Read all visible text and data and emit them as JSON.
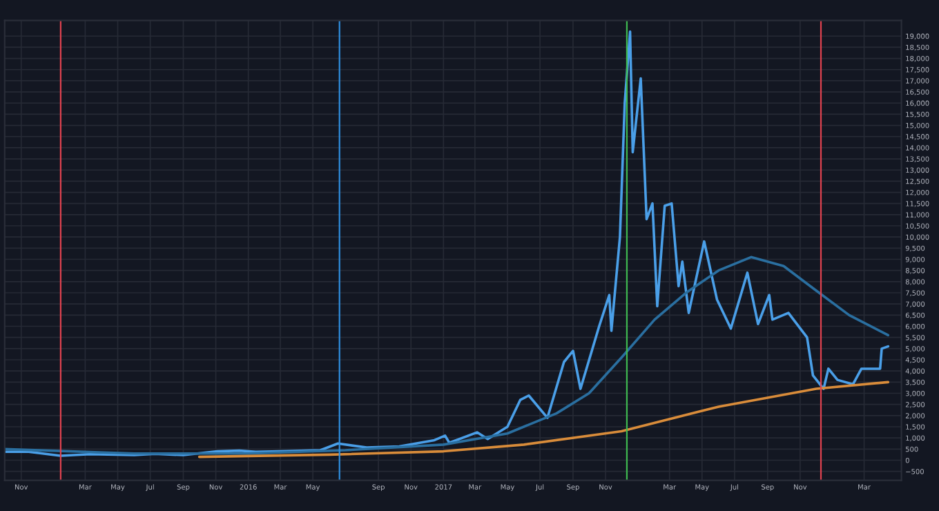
{
  "chart_data": {
    "type": "line",
    "series": [
      {
        "color": "#4a9fe8",
        "x": [
          "2014-10-01",
          "2014-11-15",
          "2015-01-14",
          "2015-03-10",
          "2015-06-01",
          "2015-07-10",
          "2015-09-01",
          "2015-11-04",
          "2015-12-15",
          "2016-01-15",
          "2016-03-15",
          "2016-05-15",
          "2016-06-17",
          "2016-08-10",
          "2016-10-10",
          "2016-12-15",
          "2017-01-04",
          "2017-01-12",
          "2017-03-05",
          "2017-03-25",
          "2017-05-01",
          "2017-05-25",
          "2017-06-10",
          "2017-07-15",
          "2017-08-15",
          "2017-09-01",
          "2017-09-15",
          "2017-10-20",
          "2017-11-08",
          "2017-11-12",
          "2017-11-28",
          "2017-12-07",
          "2017-12-17",
          "2017-12-22",
          "2018-01-06",
          "2018-01-17",
          "2018-01-28",
          "2018-02-06",
          "2018-02-20",
          "2018-03-05",
          "2018-03-18",
          "2018-03-25",
          "2018-04-06",
          "2018-05-05",
          "2018-05-29",
          "2018-06-24",
          "2018-07-25",
          "2018-08-14",
          "2018-09-04",
          "2018-09-10",
          "2018-10-10",
          "2018-11-14",
          "2018-11-25",
          "2018-12-15",
          "2018-12-24",
          "2019-01-10",
          "2019-02-08",
          "2019-02-24",
          "2019-03-31",
          "2019-04-03",
          "2019-04-15"
        ],
        "values": [
          380,
          380,
          200,
          270,
          230,
          290,
          230,
          400,
          430,
          380,
          410,
          450,
          750,
          570,
          620,
          900,
          1100,
          780,
          1250,
          950,
          1500,
          2700,
          2900,
          1900,
          4400,
          4900,
          3200,
          6000,
          7400,
          5800,
          10000,
          16000,
          19200,
          13800,
          17100,
          10800,
          11500,
          6900,
          11400,
          11500,
          7800,
          8900,
          6600,
          9800,
          7200,
          5900,
          8400,
          6100,
          7400,
          6300,
          6600,
          5500,
          3800,
          3200,
          4100,
          3600,
          3400,
          4100,
          4100,
          5000,
          5100
        ]
      },
      {
        "color": "#2a6fa0",
        "x": [
          "2014-10-01",
          "2015-06-01",
          "2016-01-01",
          "2016-07-01",
          "2017-01-01",
          "2017-05-01",
          "2017-08-01",
          "2017-10-01",
          "2017-12-01",
          "2018-02-01",
          "2018-04-01",
          "2018-06-01",
          "2018-08-01",
          "2018-10-01",
          "2018-12-01",
          "2019-02-01",
          "2019-04-15"
        ],
        "values": [
          500,
          300,
          300,
          450,
          700,
          1200,
          2100,
          3000,
          4600,
          6300,
          7500,
          8500,
          9100,
          8700,
          7600,
          6500,
          5600
        ]
      },
      {
        "color": "#d98c3a",
        "x": [
          "2015-10-01",
          "2016-06-01",
          "2017-01-01",
          "2017-06-01",
          "2017-12-01",
          "2018-06-01",
          "2018-12-01",
          "2019-04-15"
        ],
        "values": [
          150,
          250,
          400,
          700,
          1300,
          2400,
          3200,
          3500
        ]
      }
    ],
    "xlim": [
      "2014-10-01",
      "2019-05-10"
    ],
    "xticks": [
      {
        "value": "2014-11-01",
        "label": "Nov"
      },
      {
        "value": "2015-03-01",
        "label": "Mar"
      },
      {
        "value": "2015-05-01",
        "label": "May"
      },
      {
        "value": "2015-07-01",
        "label": "Jul"
      },
      {
        "value": "2015-09-01",
        "label": "Sep"
      },
      {
        "value": "2015-11-01",
        "label": "Nov"
      },
      {
        "value": "2016-01-01",
        "label": "2016"
      },
      {
        "value": "2016-03-01",
        "label": "Mar"
      },
      {
        "value": "2016-05-01",
        "label": "May"
      },
      {
        "value": "2016-09-01",
        "label": "Sep"
      },
      {
        "value": "2016-11-01",
        "label": "Nov"
      },
      {
        "value": "2017-01-01",
        "label": "2017"
      },
      {
        "value": "2017-03-01",
        "label": "Mar"
      },
      {
        "value": "2017-05-01",
        "label": "May"
      },
      {
        "value": "2017-07-01",
        "label": "Jul"
      },
      {
        "value": "2017-09-01",
        "label": "Sep"
      },
      {
        "value": "2017-11-01",
        "label": "Nov"
      },
      {
        "value": "2018-03-01",
        "label": "Mar"
      },
      {
        "value": "2018-05-01",
        "label": "May"
      },
      {
        "value": "2018-07-01",
        "label": "Jul"
      },
      {
        "value": "2018-09-01",
        "label": "Sep"
      },
      {
        "value": "2018-11-01",
        "label": "Nov"
      },
      {
        "value": "2019-03-01",
        "label": "Mar"
      }
    ],
    "ylim": [
      -900,
      19700
    ],
    "yticks": [
      {
        "value": -500,
        "label": "−500"
      },
      0,
      500,
      {
        "value": 1000,
        "label": "1,000"
      },
      {
        "value": 1500,
        "label": "1,500"
      },
      {
        "value": 2000,
        "label": "2,000"
      },
      {
        "value": 2500,
        "label": "2,500"
      },
      {
        "value": 3000,
        "label": "3,000"
      },
      {
        "value": 3500,
        "label": "3,500"
      },
      {
        "value": 4000,
        "label": "4,000"
      },
      {
        "value": 4500,
        "label": "4,500"
      },
      {
        "value": 5000,
        "label": "5,000"
      },
      {
        "value": 5500,
        "label": "5,500"
      },
      {
        "value": 6000,
        "label": "6,000"
      },
      {
        "value": 6500,
        "label": "6,500"
      },
      {
        "value": 7000,
        "label": "7,000"
      },
      {
        "value": 7500,
        "label": "7,500"
      },
      {
        "value": 8000,
        "label": "8,000"
      },
      {
        "value": 8500,
        "label": "8,500"
      },
      {
        "value": 9000,
        "label": "9,000"
      },
      {
        "value": 9500,
        "label": "9,500"
      },
      {
        "value": 10000,
        "label": "10,000"
      },
      {
        "value": 10500,
        "label": "10,500"
      },
      {
        "value": 11000,
        "label": "11,000"
      },
      {
        "value": 11500,
        "label": "11,500"
      },
      {
        "value": 12000,
        "label": "12,000"
      },
      {
        "value": 12500,
        "label": "12,500"
      },
      {
        "value": 13000,
        "label": "13,000"
      },
      {
        "value": 13500,
        "label": "13,500"
      },
      {
        "value": 14000,
        "label": "14,000"
      },
      {
        "value": 14500,
        "label": "14,500"
      },
      {
        "value": 15000,
        "label": "15,000"
      },
      {
        "value": 15500,
        "label": "15,500"
      },
      {
        "value": 16000,
        "label": "16,000"
      },
      {
        "value": 16500,
        "label": "16,500"
      },
      {
        "value": 17000,
        "label": "17,000"
      },
      {
        "value": 17500,
        "label": "17,500"
      },
      {
        "value": 18000,
        "label": "18,000"
      },
      {
        "value": 18500,
        "label": "18,500"
      },
      {
        "value": 19000,
        "label": "19,000"
      }
    ],
    "ref_lines": [
      {
        "axis": "x",
        "value": "2015-01-14",
        "color": "#e0424f"
      },
      {
        "axis": "x",
        "value": "2016-06-20",
        "color": "#2f8fe0"
      },
      {
        "axis": "x",
        "value": "2017-12-11",
        "color": "#3fb950"
      },
      {
        "axis": "x",
        "value": "2018-12-10",
        "color": "#e0424f"
      }
    ],
    "grid": true
  }
}
